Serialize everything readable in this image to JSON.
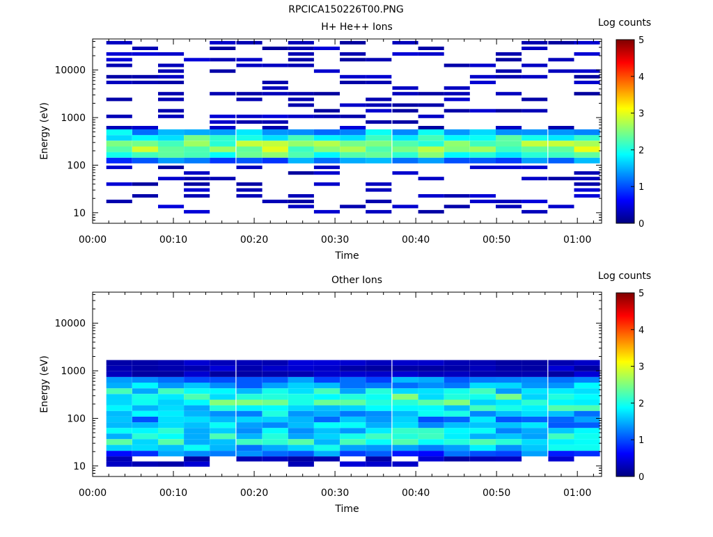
{
  "file_title": "RPCICA150226T00.PNG",
  "colors": {
    "colormap": [
      "#00007f",
      "#0000ff",
      "#007fff",
      "#00ffff",
      "#7fff7f",
      "#ffff00",
      "#ff7f00",
      "#ff0000",
      "#7f0000"
    ],
    "background": "#ffffff",
    "axis": "#000000"
  },
  "chart_data": [
    {
      "type": "heatmap",
      "title": "H+ He++ Ions",
      "xlabel": "Time",
      "ylabel": "Energy (eV)",
      "colorbar_label": "Log counts",
      "xlim_minutes": [
        0,
        63
      ],
      "x_ticks": [
        "00:00",
        "00:10",
        "00:20",
        "00:30",
        "00:40",
        "00:50",
        "01:00"
      ],
      "y_scale": "log",
      "ylim": [
        6,
        45000
      ],
      "y_ticks": [
        "10",
        "100",
        "1000",
        "10000"
      ],
      "colorbar_range": [
        0,
        5
      ],
      "colorbar_ticks": [
        "0",
        "1",
        "2",
        "3",
        "4",
        "5"
      ],
      "time_columns_start_min": [
        1.7,
        4.9,
        8.1,
        11.3,
        14.5,
        17.8,
        21.0,
        24.2,
        27.4,
        30.6,
        33.8,
        37.1,
        40.3,
        43.5,
        46.7,
        49.9,
        53.1,
        56.4,
        59.6
      ],
      "time_column_width_min": 3.2,
      "energy_bins_eV": [
        11,
        14,
        18,
        24,
        32,
        42,
        55,
        72,
        95,
        125,
        165,
        215,
        285,
        375,
        490,
        650,
        850,
        1120,
        1470,
        1930,
        2550,
        3350,
        4400,
        5800,
        7600,
        10000,
        13200,
        17400,
        22900,
        30100,
        39600
      ],
      "log_counts_profile_by_energy_bin": [
        0.4,
        0.5,
        0.5,
        0.6,
        0.6,
        0.6,
        0.7,
        0.8,
        0.8,
        1.2,
        2.2,
        2.6,
        2.5,
        2.1,
        1.5,
        0.8,
        0.6,
        0.6,
        0.5,
        0.5,
        0.5,
        0.5,
        0.5,
        0.5,
        0.5,
        0.5,
        0.5,
        0.5,
        0.5,
        0.5,
        0.5
      ]
    },
    {
      "type": "heatmap",
      "title": "Other Ions",
      "xlabel": "Time",
      "ylabel": "Energy (eV)",
      "colorbar_label": "Log counts",
      "xlim_minutes": [
        0,
        63
      ],
      "x_ticks": [
        "00:00",
        "00:10",
        "00:20",
        "00:30",
        "00:40",
        "00:50",
        "01:00"
      ],
      "y_scale": "log",
      "ylim": [
        6,
        45000
      ],
      "y_ticks": [
        "10",
        "100",
        "1000",
        "10000"
      ],
      "colorbar_range": [
        0,
        5
      ],
      "colorbar_ticks": [
        "0",
        "1",
        "2",
        "3",
        "4",
        "5"
      ],
      "time_columns_start_min": [
        1.7,
        4.9,
        8.1,
        11.3,
        14.5,
        17.8,
        21.0,
        24.2,
        27.4,
        30.6,
        33.8,
        37.1,
        40.3,
        43.5,
        46.7,
        49.9,
        53.1,
        56.4,
        59.6
      ],
      "time_column_width_min": 3.2,
      "energy_bins_eV": [
        11,
        14,
        18,
        24,
        32,
        42,
        55,
        72,
        95,
        125,
        165,
        215,
        285,
        375,
        490,
        650,
        850,
        1120,
        1470,
        1930,
        2550,
        3350,
        4400,
        5800,
        7600,
        10000,
        13200,
        17400,
        22900,
        30100,
        39600
      ],
      "log_counts_profile_by_energy_bin": [
        0.3,
        0.5,
        1.1,
        1.6,
        1.9,
        1.8,
        1.7,
        1.5,
        1.4,
        1.6,
        1.9,
        2.1,
        2.1,
        1.8,
        1.5,
        1.1,
        0.7,
        0.6,
        0.5,
        null,
        null,
        null,
        null,
        null,
        null,
        null,
        null,
        null,
        null,
        null,
        null
      ]
    }
  ]
}
